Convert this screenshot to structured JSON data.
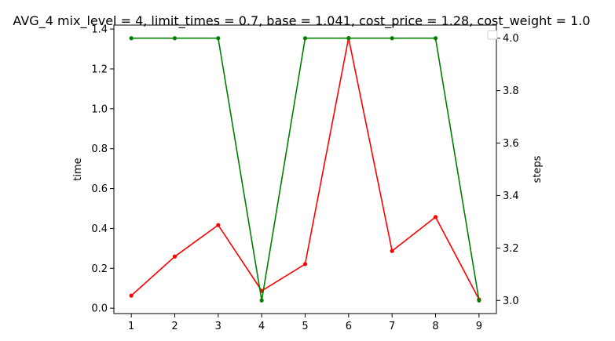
{
  "chart_data": {
    "type": "line",
    "title": "AVG_4 mix_level = 4, limit_times = 0.7, base = 1.041, cost_price = 1.28, cost_weight = 1.0",
    "xlabel": "",
    "ylabel": "time",
    "y2label": "steps",
    "x": [
      1,
      2,
      3,
      4,
      5,
      6,
      7,
      8,
      9
    ],
    "xticks": [
      "1",
      "2",
      "3",
      "4",
      "5",
      "6",
      "7",
      "8",
      "9"
    ],
    "xlim": [
      0.6,
      9.4
    ],
    "ylim": [
      -0.027,
      1.42
    ],
    "y2lim": [
      2.95,
      4.05
    ],
    "yticks": [
      "0.0",
      "0.2",
      "0.4",
      "0.6",
      "0.8",
      "1.0",
      "1.2",
      "1.4"
    ],
    "y2ticks": [
      "3.0",
      "3.2",
      "3.4",
      "3.6",
      "3.8",
      "4.0"
    ],
    "grid": false,
    "legend": "top-right (empty)",
    "series": [
      {
        "axis": "left",
        "color": "#ff0000",
        "values": [
          0.063,
          0.259,
          0.417,
          0.087,
          0.221,
          1.355,
          0.287,
          0.457,
          0.044
        ]
      },
      {
        "axis": "right",
        "color": "#008000",
        "values": [
          4.0,
          4.0,
          4.0,
          3.0,
          4.0,
          4.0,
          4.0,
          4.0,
          3.0
        ]
      }
    ]
  }
}
